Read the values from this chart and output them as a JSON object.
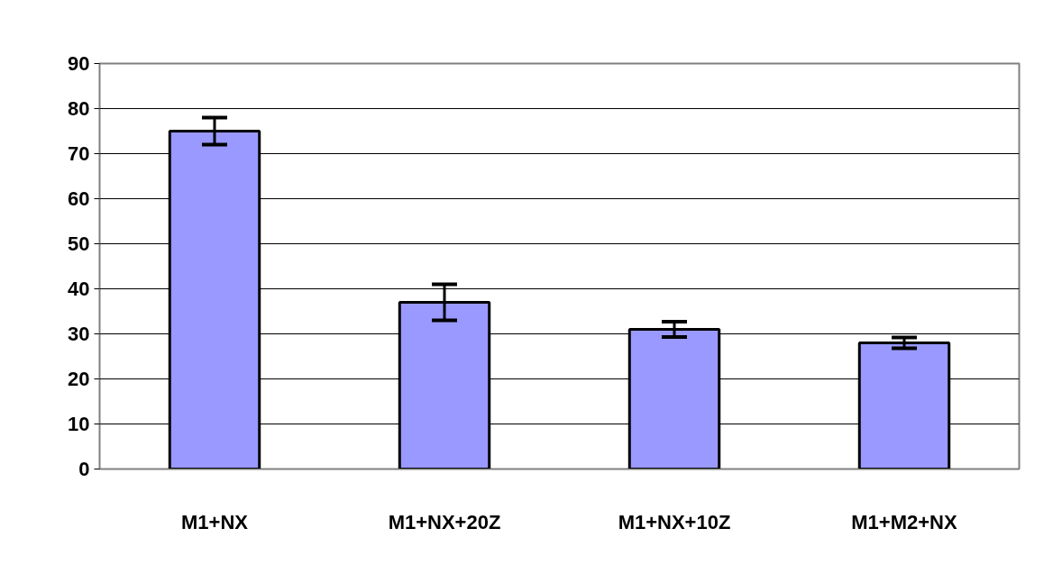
{
  "chart_data": {
    "type": "bar",
    "categories": [
      "M1+NX",
      "M1+NX+20Z",
      "M1+NX+10Z",
      "M1+M2+NX"
    ],
    "values": [
      75,
      37,
      31,
      28
    ],
    "errors": [
      3,
      4,
      1.7,
      1.2
    ],
    "color": "#9999ff",
    "ylim": [
      0,
      90
    ],
    "yticks": [
      0,
      10,
      20,
      30,
      40,
      50,
      60,
      70,
      80,
      90
    ],
    "grid": "y"
  }
}
